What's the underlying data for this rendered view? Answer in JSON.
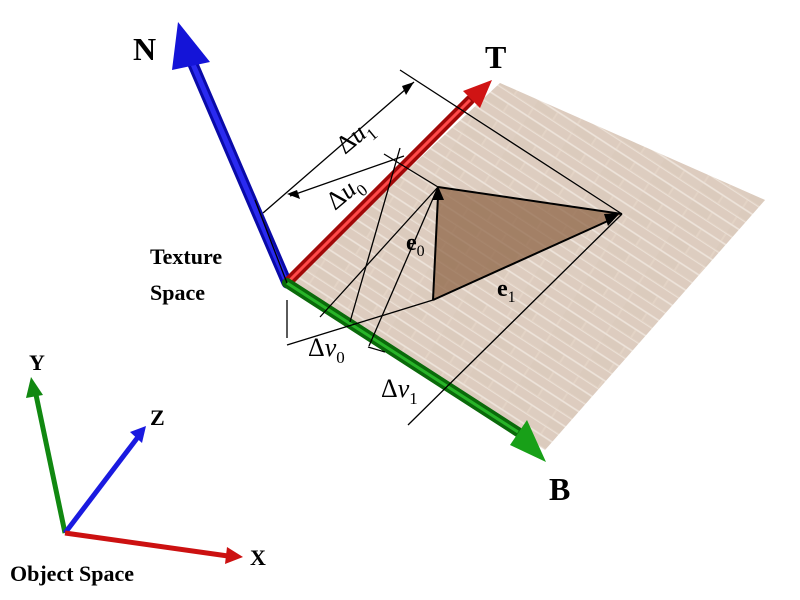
{
  "axes": {
    "normal": "N",
    "tangent": "T",
    "bitangent": "B"
  },
  "object_axes": {
    "x": "X",
    "y": "Y",
    "z": "Z"
  },
  "labels": {
    "texture_space_line1": "Texture",
    "texture_space_line2": "Space",
    "object_space": "Object Space",
    "delta": "Δ",
    "u": "u",
    "v": "v",
    "e": "e",
    "sub0": "0",
    "sub1": "1"
  },
  "colors": {
    "normal": "#1010d0",
    "tangent": "#cc1111",
    "bitangent": "#128a12",
    "plane": "#d8c4b4",
    "triangle": "#8a6040"
  }
}
